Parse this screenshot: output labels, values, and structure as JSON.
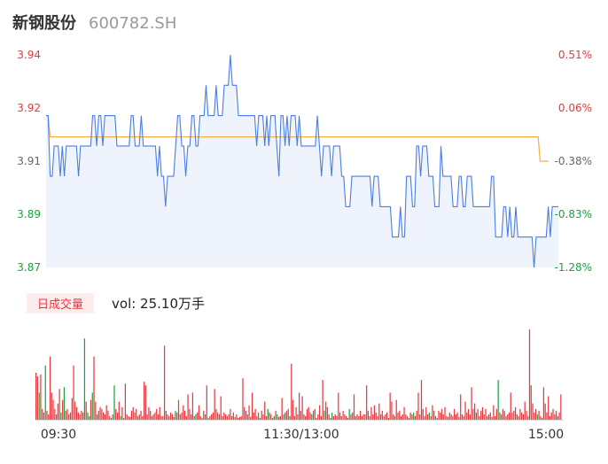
{
  "header": {
    "name": "新钢股份",
    "code": "600782.SH"
  },
  "volume": {
    "tab_label": "日成交量",
    "text": "vol: 25.10万手"
  },
  "colors": {
    "up": "#e8383d",
    "down": "#1aa33c",
    "price_line": "#4a7ee6",
    "avg_line": "#f5b03b",
    "area": "#eef3fc"
  },
  "chart_data": {
    "type": "line",
    "prev_close": 3.913,
    "ylim": [
      3.87,
      3.94
    ],
    "y_ticks_left": [
      "3.94",
      "3.92",
      "3.91",
      "3.89",
      "3.87"
    ],
    "y_ticks_right": [
      "0.51%",
      "0.06%",
      "-0.38%",
      "-0.83%",
      "-1.28%"
    ],
    "x_ticks": [
      "09:30",
      "11:30/13:00",
      "15:00"
    ],
    "price": [
      3.92,
      3.92,
      3.9,
      3.9,
      3.91,
      3.91,
      3.91,
      3.9,
      3.91,
      3.9,
      3.91,
      3.91,
      3.91,
      3.91,
      3.91,
      3.91,
      3.9,
      3.91,
      3.91,
      3.91,
      3.91,
      3.91,
      3.91,
      3.92,
      3.92,
      3.91,
      3.92,
      3.92,
      3.91,
      3.92,
      3.92,
      3.92,
      3.92,
      3.92,
      3.92,
      3.91,
      3.91,
      3.91,
      3.91,
      3.91,
      3.91,
      3.91,
      3.92,
      3.92,
      3.91,
      3.91,
      3.91,
      3.92,
      3.91,
      3.91,
      3.91,
      3.91,
      3.91,
      3.91,
      3.91,
      3.9,
      3.91,
      3.9,
      3.9,
      3.89,
      3.9,
      3.9,
      3.9,
      3.9,
      3.91,
      3.92,
      3.92,
      3.91,
      3.91,
      3.9,
      3.91,
      3.91,
      3.92,
      3.92,
      3.91,
      3.91,
      3.92,
      3.92,
      3.92,
      3.93,
      3.92,
      3.92,
      3.92,
      3.92,
      3.93,
      3.92,
      3.92,
      3.92,
      3.93,
      3.93,
      3.93,
      3.94,
      3.93,
      3.93,
      3.93,
      3.92,
      3.92,
      3.92,
      3.92,
      3.92,
      3.92,
      3.92,
      3.92,
      3.92,
      3.91,
      3.92,
      3.92,
      3.92,
      3.91,
      3.92,
      3.91,
      3.92,
      3.92,
      3.92,
      3.91,
      3.9,
      3.92,
      3.92,
      3.91,
      3.92,
      3.91,
      3.92,
      3.92,
      3.92,
      3.91,
      3.92,
      3.91,
      3.91,
      3.91,
      3.91,
      3.91,
      3.91,
      3.91,
      3.91,
      3.92,
      3.91,
      3.9,
      3.91,
      3.91,
      3.91,
      3.91,
      3.9,
      3.91,
      3.91,
      3.91,
      3.91,
      3.9,
      3.9,
      3.89,
      3.89,
      3.89,
      3.9,
      3.9,
      3.9,
      3.9,
      3.9,
      3.9,
      3.9,
      3.9,
      3.9,
      3.9,
      3.89,
      3.9,
      3.9,
      3.9,
      3.89,
      3.89,
      3.89,
      3.89,
      3.89,
      3.89,
      3.88,
      3.88,
      3.88,
      3.88,
      3.89,
      3.88,
      3.88,
      3.9,
      3.9,
      3.9,
      3.89,
      3.89,
      3.91,
      3.91,
      3.9,
      3.91,
      3.91,
      3.91,
      3.9,
      3.9,
      3.9,
      3.89,
      3.89,
      3.89,
      3.91,
      3.9,
      3.9,
      3.9,
      3.9,
      3.9,
      3.89,
      3.89,
      3.89,
      3.9,
      3.9,
      3.89,
      3.89,
      3.9,
      3.9,
      3.9,
      3.89,
      3.89,
      3.89,
      3.89,
      3.89,
      3.89,
      3.89,
      3.89,
      3.89,
      3.9,
      3.9,
      3.88,
      3.88,
      3.88,
      3.88,
      3.89,
      3.89,
      3.88,
      3.89,
      3.88,
      3.88,
      3.89,
      3.88,
      3.88,
      3.88,
      3.88,
      3.88,
      3.88,
      3.88,
      3.88,
      3.87,
      3.88,
      3.88,
      3.88,
      3.88,
      3.88,
      3.88,
      3.89,
      3.88,
      3.89,
      3.89,
      3.89,
      3.89
    ],
    "avg_price": [
      3.92,
      3.92,
      3.913,
      3.913,
      3.913,
      3.913,
      3.913,
      3.913,
      3.913,
      3.913,
      3.913,
      3.913,
      3.913,
      3.913,
      3.913,
      3.913,
      3.913,
      3.913,
      3.913,
      3.913,
      3.913,
      3.913,
      3.913,
      3.913,
      3.913,
      3.913,
      3.913,
      3.913,
      3.913,
      3.913,
      3.913,
      3.913,
      3.913,
      3.913,
      3.913,
      3.913,
      3.913,
      3.913,
      3.913,
      3.913,
      3.913,
      3.913,
      3.913,
      3.913,
      3.913,
      3.913,
      3.913,
      3.913,
      3.913,
      3.913,
      3.913,
      3.913,
      3.913,
      3.913,
      3.913,
      3.913,
      3.913,
      3.913,
      3.913,
      3.913,
      3.913,
      3.913,
      3.913,
      3.913,
      3.913,
      3.913,
      3.913,
      3.913,
      3.913,
      3.913,
      3.913,
      3.913,
      3.913,
      3.913,
      3.913,
      3.913,
      3.913,
      3.913,
      3.913,
      3.913,
      3.913,
      3.913,
      3.913,
      3.913,
      3.913,
      3.913,
      3.913,
      3.913,
      3.913,
      3.913,
      3.913,
      3.913,
      3.913,
      3.913,
      3.913,
      3.913,
      3.913,
      3.913,
      3.913,
      3.913,
      3.913,
      3.913,
      3.913,
      3.913,
      3.913,
      3.913,
      3.913,
      3.913,
      3.913,
      3.913,
      3.913,
      3.913,
      3.913,
      3.913,
      3.913,
      3.913,
      3.913,
      3.913,
      3.913,
      3.913,
      3.913,
      3.913,
      3.913,
      3.913,
      3.913,
      3.913,
      3.913,
      3.913,
      3.913,
      3.913,
      3.913,
      3.913,
      3.913,
      3.913,
      3.913,
      3.913,
      3.913,
      3.913,
      3.913,
      3.913,
      3.913,
      3.913,
      3.913,
      3.913,
      3.913,
      3.913,
      3.913,
      3.913,
      3.913,
      3.913,
      3.913,
      3.913,
      3.913,
      3.913,
      3.913,
      3.913,
      3.913,
      3.913,
      3.913,
      3.913,
      3.913,
      3.913,
      3.913,
      3.913,
      3.913,
      3.913,
      3.913,
      3.913,
      3.913,
      3.913,
      3.913,
      3.913,
      3.913,
      3.913,
      3.913,
      3.913,
      3.913,
      3.913,
      3.913,
      3.913,
      3.913,
      3.913,
      3.913,
      3.913,
      3.913,
      3.913,
      3.913,
      3.913,
      3.913,
      3.913,
      3.913,
      3.913,
      3.913,
      3.913,
      3.913,
      3.913,
      3.913,
      3.913,
      3.913,
      3.913,
      3.913,
      3.913,
      3.913,
      3.913,
      3.913,
      3.913,
      3.913,
      3.913,
      3.913,
      3.913,
      3.913,
      3.913,
      3.913,
      3.913,
      3.913,
      3.913,
      3.913,
      3.913,
      3.913,
      3.913,
      3.913,
      3.913,
      3.913,
      3.913,
      3.913,
      3.913,
      3.913,
      3.913,
      3.913,
      3.913,
      3.913,
      3.913,
      3.913,
      3.913,
      3.913,
      3.913,
      3.913,
      3.913,
      3.913,
      3.913,
      3.913,
      3.913,
      3.913,
      3.913,
      3.905,
      3.905,
      3.905,
      3.905,
      3.905
    ],
    "volume": [
      52,
      48,
      30,
      50,
      12,
      8,
      60,
      10,
      6,
      70,
      30,
      22,
      12,
      6,
      18,
      34,
      8,
      22,
      36,
      10,
      12,
      6,
      8,
      24,
      60,
      20,
      14,
      8,
      6,
      10,
      8,
      90,
      20,
      8,
      4,
      22,
      30,
      70,
      20,
      6,
      10,
      14,
      12,
      8,
      6,
      16,
      10,
      4,
      2,
      6,
      38,
      12,
      8,
      20,
      4,
      14,
      2,
      40,
      6,
      4,
      3,
      10,
      14,
      8,
      12,
      4,
      6,
      10,
      4,
      42,
      38,
      6,
      14,
      10,
      4,
      6,
      8,
      12,
      6,
      14,
      4,
      4,
      82,
      10,
      6,
      4,
      8,
      6,
      3,
      10,
      8,
      22,
      6,
      8,
      16,
      10,
      4,
      28,
      12,
      6,
      30,
      4,
      6,
      8,
      16,
      4,
      2,
      10,
      6,
      38,
      2,
      4,
      6,
      8,
      34,
      12,
      8,
      6,
      26,
      4,
      8,
      6,
      4,
      6,
      12,
      4,
      8,
      3,
      6,
      2,
      3,
      4,
      46,
      14,
      10,
      6,
      16,
      3,
      30,
      8,
      12,
      4,
      8,
      2,
      10,
      6,
      20,
      4,
      12,
      8,
      6,
      2,
      4,
      10,
      6,
      3,
      4,
      24,
      6,
      8,
      10,
      12,
      4,
      62,
      22,
      4,
      14,
      6,
      30,
      10,
      26,
      6,
      4,
      12,
      14,
      8,
      6,
      10,
      12,
      2,
      6,
      16,
      4,
      44,
      10,
      20,
      14,
      6,
      2,
      8,
      4,
      6,
      4,
      30,
      8,
      4,
      10,
      6,
      4,
      2,
      12,
      6,
      8,
      28,
      4,
      6,
      4,
      10,
      4,
      6,
      6,
      38,
      10,
      4,
      14,
      6,
      16,
      8,
      4,
      18,
      6,
      10,
      4,
      6,
      8,
      2,
      30,
      20,
      6,
      4,
      22,
      8,
      10,
      4,
      6,
      14,
      6,
      4,
      2,
      8,
      6,
      8,
      4,
      10,
      30,
      6,
      44,
      12,
      4,
      14,
      6,
      8,
      4,
      16,
      10,
      4,
      2,
      10,
      8,
      12,
      6,
      14,
      4,
      3,
      8,
      6,
      4,
      12,
      6,
      8,
      3,
      28,
      6,
      4,
      20,
      8,
      12,
      6,
      36,
      12,
      18,
      8,
      12,
      4,
      10,
      14,
      6,
      12,
      4,
      6,
      8,
      3,
      16,
      4,
      12,
      44,
      8,
      6,
      12,
      10,
      4,
      6,
      8,
      30,
      8,
      10,
      14,
      6,
      4,
      12,
      8,
      6,
      20,
      10,
      4,
      100,
      38,
      18,
      8,
      12,
      6,
      10,
      4,
      2,
      36,
      18,
      8,
      26,
      4,
      8,
      12,
      6,
      10,
      4,
      8,
      28
    ],
    "volume_dir": [
      "u",
      "u",
      "d",
      "u",
      "u",
      "u",
      "d",
      "u",
      "u",
      "u",
      "u",
      "u",
      "u",
      "u",
      "u",
      "u",
      "d",
      "u",
      "d",
      "u",
      "u",
      "u",
      "u",
      "u",
      "u",
      "u",
      "u",
      "u",
      "u",
      "u",
      "u",
      "d",
      "u",
      "d",
      "d",
      "u",
      "d",
      "u",
      "u",
      "d",
      "u",
      "u",
      "u",
      "u",
      "u",
      "u",
      "u",
      "u",
      "d",
      "u",
      "d",
      "u",
      "u",
      "u",
      "d",
      "u",
      "u",
      "u",
      "u",
      "u",
      "u",
      "u",
      "u",
      "u",
      "u",
      "d",
      "u",
      "u",
      "u",
      "u",
      "u",
      "u",
      "u",
      "u",
      "u",
      "u",
      "u",
      "u",
      "u",
      "u",
      "u",
      "u",
      "u",
      "u",
      "u",
      "u",
      "u",
      "u",
      "u",
      "d",
      "u",
      "u",
      "u",
      "u",
      "u",
      "u",
      "u",
      "u",
      "u",
      "u",
      "u",
      "u",
      "d",
      "u",
      "u",
      "u",
      "u",
      "u",
      "d",
      "u",
      "d",
      "u",
      "u",
      "u",
      "u",
      "u",
      "u",
      "u",
      "u",
      "u",
      "u",
      "u",
      "u",
      "u",
      "u",
      "u",
      "u",
      "u",
      "u",
      "u",
      "u",
      "u",
      "u",
      "u",
      "u",
      "u",
      "u",
      "u",
      "u",
      "u",
      "u",
      "u",
      "d",
      "u",
      "u",
      "u",
      "u",
      "u",
      "d",
      "u",
      "u",
      "u",
      "d",
      "u",
      "d",
      "u",
      "u",
      "u",
      "d",
      "u",
      "u",
      "u",
      "d",
      "u",
      "u",
      "u",
      "u",
      "u",
      "u",
      "u",
      "u",
      "u",
      "u",
      "u",
      "u",
      "u",
      "d",
      "d",
      "u",
      "u",
      "u",
      "u",
      "u",
      "u",
      "d",
      "u",
      "u",
      "u",
      "u",
      "d",
      "u",
      "u",
      "u",
      "u",
      "u",
      "u",
      "u",
      "u",
      "u",
      "u",
      "d",
      "u",
      "u",
      "u",
      "u",
      "u",
      "u",
      "u",
      "u",
      "u",
      "u",
      "u",
      "u",
      "u",
      "u",
      "u",
      "u",
      "u",
      "u",
      "u",
      "u",
      "u",
      "u",
      "u",
      "u",
      "u",
      "u",
      "u",
      "u",
      "u",
      "u",
      "u",
      "u",
      "u",
      "u",
      "u",
      "u",
      "u",
      "u",
      "u",
      "u",
      "d",
      "u",
      "u",
      "u",
      "u",
      "u",
      "u",
      "u",
      "u",
      "u",
      "d",
      "u",
      "u",
      "u",
      "u",
      "u",
      "u",
      "u",
      "u",
      "u",
      "u",
      "u",
      "u",
      "u",
      "u",
      "u",
      "u",
      "u",
      "u",
      "u",
      "u",
      "u",
      "u",
      "u",
      "u",
      "u",
      "u",
      "u",
      "u",
      "u",
      "d",
      "u",
      "u",
      "u",
      "u",
      "u",
      "u",
      "u",
      "u",
      "u",
      "u",
      "u",
      "u",
      "u",
      "d",
      "u",
      "u",
      "u",
      "u",
      "u",
      "u",
      "u",
      "u",
      "u",
      "u",
      "u",
      "u",
      "u",
      "u",
      "u",
      "u",
      "u",
      "u",
      "u",
      "u",
      "u",
      "u",
      "u",
      "u",
      "d",
      "u",
      "u",
      "u",
      "u",
      "u",
      "u",
      "u",
      "u",
      "u",
      "u",
      "u",
      "u",
      "u",
      "u",
      "u",
      "u",
      "d"
    ]
  }
}
